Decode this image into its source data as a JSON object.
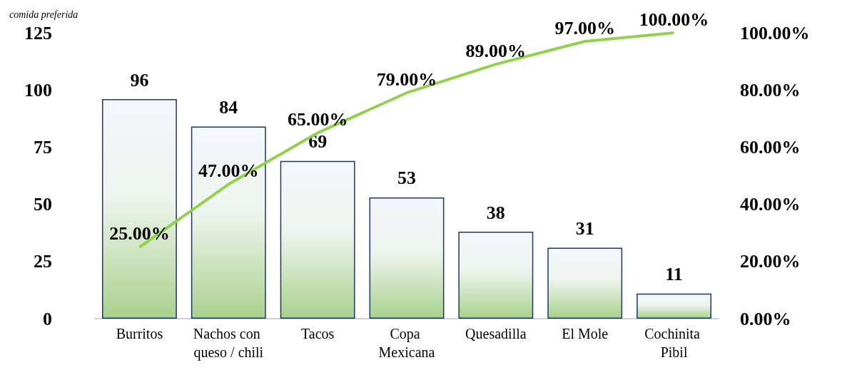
{
  "chart_data": {
    "type": "bar",
    "subtitle": "comida preferida",
    "categories": [
      "Burritos",
      "Nachos con queso / chili",
      "Tacos",
      "Copa Mexicana",
      "Quesadilla",
      "El Mole",
      "Cochinita Pibil"
    ],
    "series": [
      {
        "color": "#1f3864",
        "values": [
          96,
          84,
          69,
          53,
          38,
          31,
          11
        ],
        "data_labels": true
      },
      {
        "type": "line",
        "axis": "y2",
        "color": "#92d050",
        "values": [
          25,
          47,
          65,
          79,
          89,
          97,
          100
        ],
        "value_labels": [
          "25.00%",
          "47.00%",
          "65.00%",
          "79.00%",
          "89.00%",
          "97.00%",
          "100.00%"
        ]
      }
    ],
    "ylim": [
      0,
      125
    ],
    "yticks": [
      0,
      25,
      50,
      75,
      100,
      125
    ],
    "y2lim": [
      0,
      100
    ],
    "y2ticks": [
      {
        "value": 0,
        "label": "0.00%"
      },
      {
        "value": 20,
        "label": "20.00%"
      },
      {
        "value": 40,
        "label": "40.00%"
      },
      {
        "value": 60,
        "label": "60.00%"
      },
      {
        "value": 80,
        "label": "80.00%"
      },
      {
        "value": 100,
        "label": "100.00%"
      }
    ],
    "grid": false,
    "marker": "none"
  }
}
